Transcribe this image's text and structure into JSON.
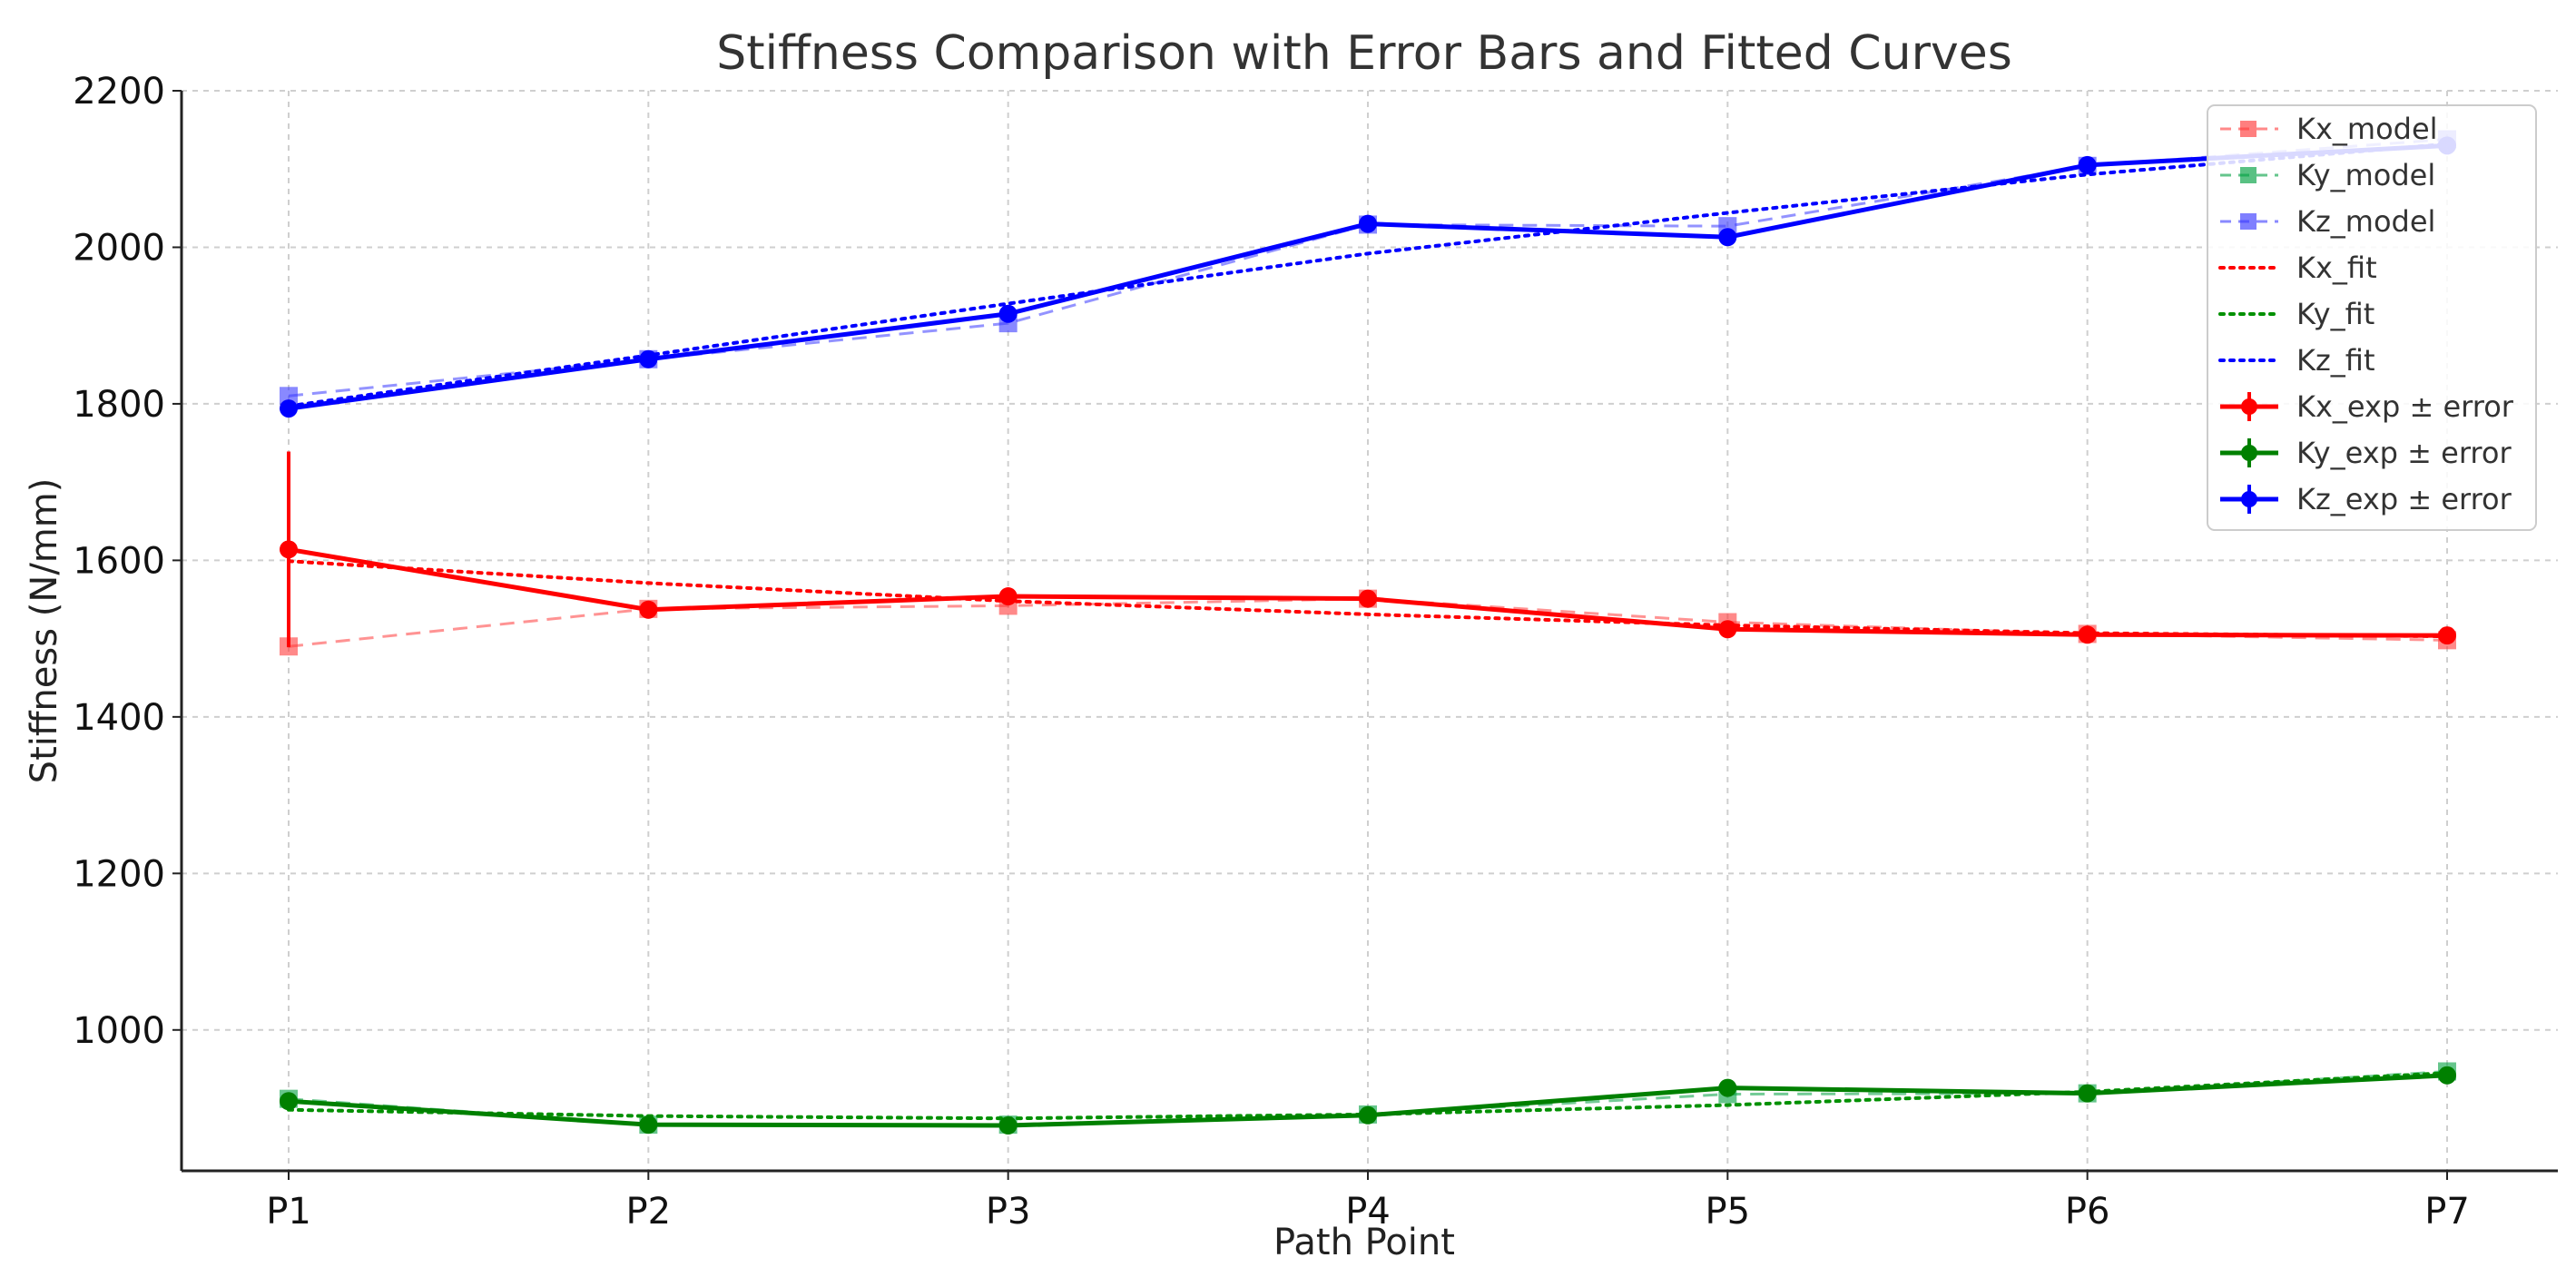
{
  "chart_data": {
    "type": "line",
    "title": "Stiffness Comparison with Error Bars and Fitted Curves",
    "xlabel": "Path Point",
    "ylabel": "Stiffness (N/mm)",
    "categories": [
      "P1",
      "P2",
      "P3",
      "P4",
      "P5",
      "P6",
      "P7"
    ],
    "ylim": [
      820,
      2200
    ],
    "yticks": [
      1000,
      1200,
      1400,
      1600,
      1800,
      2000,
      2200
    ],
    "grid": true,
    "legend_position": "top-right",
    "series": [
      {
        "name": "Kx_model",
        "kind": "model",
        "color": "#ff3b3b",
        "values": [
          1490,
          1538,
          1542,
          1551,
          1521,
          1506,
          1498
        ]
      },
      {
        "name": "Ky_model",
        "kind": "model",
        "color": "#00a040",
        "values": [
          912,
          879,
          879,
          892,
          918,
          919,
          947
        ]
      },
      {
        "name": "Kz_model",
        "kind": "model",
        "color": "#3b3bff",
        "values": [
          1810,
          1857,
          1903,
          2029,
          2027,
          2104,
          2138
        ]
      },
      {
        "name": "Kx_fit",
        "kind": "fit",
        "color": "#ff0000",
        "values": [
          1599,
          1571,
          1548,
          1531,
          1517,
          1507,
          1503
        ]
      },
      {
        "name": "Ky_fit",
        "kind": "fit",
        "color": "#009000",
        "values": [
          898,
          890,
          887,
          892,
          904,
          921,
          945
        ]
      },
      {
        "name": "Kz_fit",
        "kind": "fit",
        "color": "#0000ff",
        "values": [
          1797,
          1862,
          1928,
          1992,
          2044,
          2093,
          2132
        ]
      },
      {
        "name": "Kx_exp ± error",
        "kind": "exp",
        "color": "#ff0000",
        "values": [
          1614,
          1537,
          1554,
          1551,
          1512,
          1505,
          1504
        ],
        "errors": [
          125,
          0,
          0,
          0,
          0,
          0,
          0
        ]
      },
      {
        "name": "Ky_exp ± error",
        "kind": "exp",
        "color": "#008000",
        "values": [
          909,
          879,
          878,
          891,
          926,
          919,
          942
        ],
        "errors": [
          0,
          0,
          0,
          0,
          0,
          0,
          0
        ]
      },
      {
        "name": "Kz_exp ± error",
        "kind": "exp",
        "color": "#0000ff",
        "values": [
          1794,
          1857,
          1915,
          2030,
          2013,
          2105,
          2130
        ],
        "errors": [
          0,
          0,
          0,
          0,
          0,
          0,
          0
        ]
      }
    ]
  }
}
